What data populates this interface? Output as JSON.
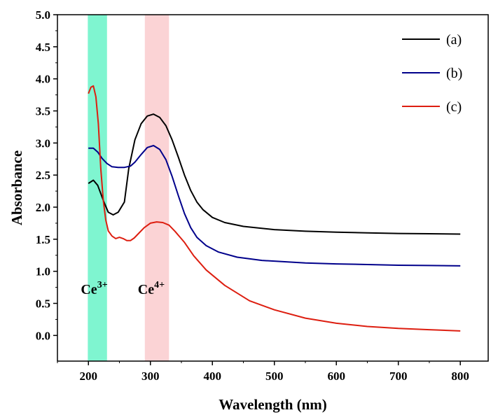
{
  "chart_data": {
    "type": "line",
    "xlabel": "Wavelength (nm)",
    "ylabel": "Absorbance",
    "xlim": [
      150,
      845
    ],
    "ylim": [
      -0.4,
      5.0
    ],
    "xticks": [
      "200",
      "300",
      "400",
      "500",
      "600",
      "700",
      "800"
    ],
    "yticks": [
      "0.0",
      "0.5",
      "1.0",
      "1.5",
      "2.0",
      "2.5",
      "3.0",
      "3.5",
      "4.0",
      "4.5",
      "5.0"
    ],
    "grid": false,
    "legend_position": "top-right",
    "bands": [
      {
        "label_base": "Ce",
        "label_sup": "3+",
        "x_range": [
          199,
          230
        ],
        "color": "#7ff5d0"
      },
      {
        "label_base": "Ce",
        "label_sup": "4+",
        "x_range": [
          291,
          330
        ],
        "color": "#fbd3d5"
      }
    ],
    "series": [
      {
        "name": "(a)",
        "color": "#000000",
        "x": [
          200,
          208,
          215,
          225,
          232,
          240,
          248,
          258,
          265,
          275,
          285,
          295,
          305,
          315,
          325,
          335,
          345,
          355,
          365,
          375,
          385,
          400,
          420,
          450,
          500,
          550,
          600,
          650,
          700,
          750,
          800
        ],
        "y": [
          2.37,
          2.42,
          2.34,
          2.08,
          1.92,
          1.88,
          1.92,
          2.08,
          2.6,
          3.05,
          3.3,
          3.42,
          3.45,
          3.4,
          3.27,
          3.05,
          2.78,
          2.5,
          2.26,
          2.08,
          1.96,
          1.84,
          1.76,
          1.7,
          1.65,
          1.625,
          1.61,
          1.6,
          1.59,
          1.585,
          1.58
        ]
      },
      {
        "name": "(b)",
        "color": "#00008b",
        "x": [
          200,
          208,
          215,
          222,
          230,
          238,
          248,
          258,
          268,
          275,
          285,
          295,
          305,
          315,
          325,
          335,
          345,
          355,
          365,
          375,
          390,
          410,
          440,
          480,
          550,
          600,
          650,
          700,
          750,
          800
        ],
        "y": [
          2.92,
          2.92,
          2.86,
          2.76,
          2.68,
          2.63,
          2.62,
          2.62,
          2.64,
          2.7,
          2.82,
          2.93,
          2.96,
          2.9,
          2.74,
          2.48,
          2.18,
          1.9,
          1.68,
          1.53,
          1.4,
          1.3,
          1.22,
          1.17,
          1.13,
          1.115,
          1.105,
          1.095,
          1.09,
          1.085
        ]
      },
      {
        "name": "(c)",
        "color": "#dd1e10",
        "x": [
          200,
          204,
          208,
          212,
          216,
          220,
          224,
          228,
          232,
          238,
          244,
          250,
          256,
          262,
          268,
          274,
          280,
          290,
          300,
          310,
          320,
          330,
          340,
          355,
          370,
          390,
          420,
          460,
          500,
          550,
          600,
          650,
          700,
          750,
          800
        ],
        "y": [
          3.77,
          3.87,
          3.89,
          3.72,
          3.3,
          2.6,
          2.1,
          1.8,
          1.63,
          1.55,
          1.51,
          1.53,
          1.51,
          1.48,
          1.48,
          1.52,
          1.58,
          1.68,
          1.75,
          1.77,
          1.76,
          1.72,
          1.62,
          1.45,
          1.24,
          1.02,
          0.78,
          0.54,
          0.4,
          0.27,
          0.19,
          0.14,
          0.11,
          0.09,
          0.07
        ]
      }
    ]
  }
}
